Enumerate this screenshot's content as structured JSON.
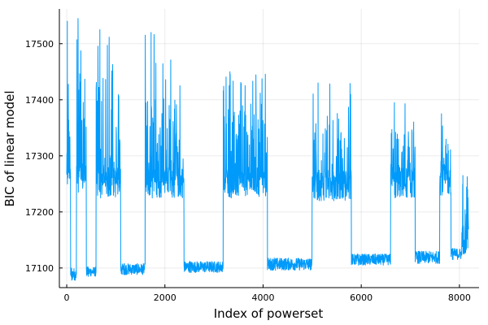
{
  "chart_data": {
    "type": "line",
    "title": "",
    "xlabel": "Index of powerset",
    "ylabel": "BIC of linear model",
    "xlim": [
      -150,
      8400
    ],
    "ylim": [
      17065,
      17562
    ],
    "xticks": [
      0,
      2000,
      4000,
      6000,
      8000
    ],
    "xtick_labels": [
      "0",
      "2000",
      "4000",
      "6000",
      "8000"
    ],
    "yticks": [
      17100,
      17200,
      17300,
      17400,
      17500
    ],
    "ytick_labels": [
      "17100",
      "17200",
      "17300",
      "17400",
      "17500"
    ],
    "grid": true,
    "legend": "none",
    "line_color": "#009AFA",
    "segments": [
      {
        "x_start": 0,
        "x_end": 80,
        "level": "high",
        "min": 17250,
        "typical_top": 17470,
        "max": 17540
      },
      {
        "x_start": 80,
        "x_end": 200,
        "level": "low",
        "min": 17078,
        "max": 17100
      },
      {
        "x_start": 200,
        "x_end": 400,
        "level": "high",
        "min": 17235,
        "typical_top": 17460,
        "max": 17545
      },
      {
        "x_start": 400,
        "x_end": 600,
        "level": "low",
        "min": 17085,
        "max": 17102
      },
      {
        "x_start": 600,
        "x_end": 1100,
        "level": "high",
        "min": 17225,
        "typical_top": 17440,
        "max": 17525
      },
      {
        "x_start": 1100,
        "x_end": 1600,
        "level": "low",
        "min": 17088,
        "max": 17108
      },
      {
        "x_start": 1600,
        "x_end": 2390,
        "level": "high",
        "min": 17225,
        "typical_top": 17400,
        "max": 17520
      },
      {
        "x_start": 2390,
        "x_end": 3190,
        "level": "low",
        "min": 17092,
        "max": 17112
      },
      {
        "x_start": 3190,
        "x_end": 4090,
        "level": "high",
        "min": 17225,
        "typical_top": 17380,
        "max": 17450
      },
      {
        "x_start": 4090,
        "x_end": 5000,
        "level": "low",
        "min": 17096,
        "max": 17118
      },
      {
        "x_start": 5000,
        "x_end": 5800,
        "level": "high",
        "min": 17220,
        "typical_top": 17360,
        "max": 17430
      },
      {
        "x_start": 5800,
        "x_end": 6600,
        "level": "low",
        "min": 17105,
        "max": 17125
      },
      {
        "x_start": 6600,
        "x_end": 7100,
        "level": "high",
        "min": 17225,
        "typical_top": 17350,
        "max": 17395
      },
      {
        "x_start": 7100,
        "x_end": 7600,
        "level": "low",
        "min": 17108,
        "max": 17130
      },
      {
        "x_start": 7600,
        "x_end": 7830,
        "level": "high",
        "min": 17230,
        "typical_top": 17330,
        "max": 17375
      },
      {
        "x_start": 7830,
        "x_end": 8050,
        "level": "low",
        "min": 17115,
        "max": 17135
      },
      {
        "x_start": 8050,
        "x_end": 8191,
        "level": "high",
        "min": 17125,
        "typical_top": 17255,
        "max": 17265
      }
    ]
  }
}
